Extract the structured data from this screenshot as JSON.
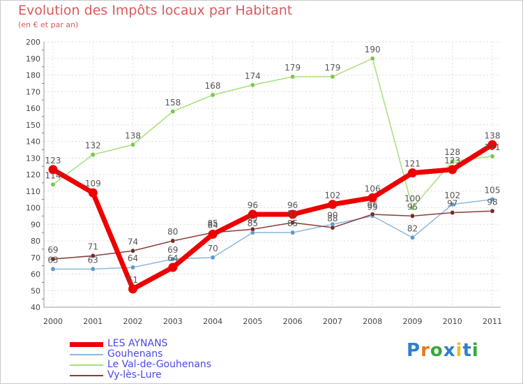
{
  "title": "Evolution des Impôts locaux par Habitant",
  "subtitle": "(en € et par an)",
  "logo": {
    "text": "Proxiti",
    "colors": [
      "#2f7fd0",
      "#e87a1a",
      "#38a838",
      "#2f7fd0",
      "#e8c020",
      "#2f7fd0",
      "#38a838"
    ]
  },
  "chart_data": {
    "type": "line",
    "x": [
      "2000",
      "2001",
      "2002",
      "2003",
      "2004",
      "2005",
      "2006",
      "2007",
      "2008",
      "2009",
      "2010",
      "2011"
    ],
    "ylim": [
      40,
      200
    ],
    "yticks": [
      40,
      50,
      60,
      70,
      80,
      90,
      100,
      110,
      120,
      130,
      140,
      150,
      160,
      170,
      180,
      190,
      200
    ],
    "grid": true,
    "legend_position": "bottom-left",
    "series": [
      {
        "name": "Le Val-de-Gouhenans",
        "color": "#a6e07a",
        "marker": "#7cc84a",
        "width": 1.5,
        "values": [
          114,
          132,
          138,
          158,
          168,
          174,
          179,
          179,
          190,
          100,
          128,
          131
        ],
        "labels": [
          "114",
          "132",
          "138",
          "158",
          "168",
          "174",
          "179",
          "179",
          "190",
          "100",
          "128",
          "131"
        ]
      },
      {
        "name": "Gouhenans",
        "color": "#8cb8dc",
        "marker": "#5a9ad0",
        "width": 1.5,
        "values": [
          63,
          63,
          64,
          69,
          70,
          85,
          85,
          90,
          95,
          82,
          102,
          105
        ],
        "labels": [
          "63",
          "63",
          "64",
          "69",
          "70",
          "85",
          "85",
          "90",
          "95",
          "82",
          "102",
          "105"
        ]
      },
      {
        "name": "Vy-lès-Lure",
        "color": "#8c3a3a",
        "marker": "#7a2a2a",
        "width": 1.5,
        "values": [
          69,
          71,
          74,
          80,
          85,
          87,
          91,
          88,
          96,
          95,
          97,
          98
        ],
        "labels": [
          "69",
          "71",
          "74",
          "80",
          "85",
          "87",
          "91",
          "88",
          "96",
          "95",
          "97",
          "98"
        ]
      },
      {
        "name": "LES AYNANS",
        "color": "#ee0000",
        "marker": "#ee0000",
        "width": 7,
        "values": [
          123,
          109,
          51,
          64,
          84,
          96,
          96,
          102,
          106,
          121,
          123,
          138
        ],
        "labels": [
          "123",
          "109",
          "51",
          "64",
          "84",
          "96",
          "96",
          "102",
          "106",
          "121",
          "123",
          "138"
        ]
      }
    ],
    "legend": [
      {
        "name": "LES AYNANS",
        "color": "#ee0000",
        "width": 7
      },
      {
        "name": "Gouhenans",
        "color": "#8cb8dc",
        "width": 1.5
      },
      {
        "name": "Le Val-de-Gouhenans",
        "color": "#a6e07a",
        "width": 1.5
      },
      {
        "name": "Vy-lès-Lure",
        "color": "#8c3a3a",
        "width": 1.5
      }
    ]
  }
}
